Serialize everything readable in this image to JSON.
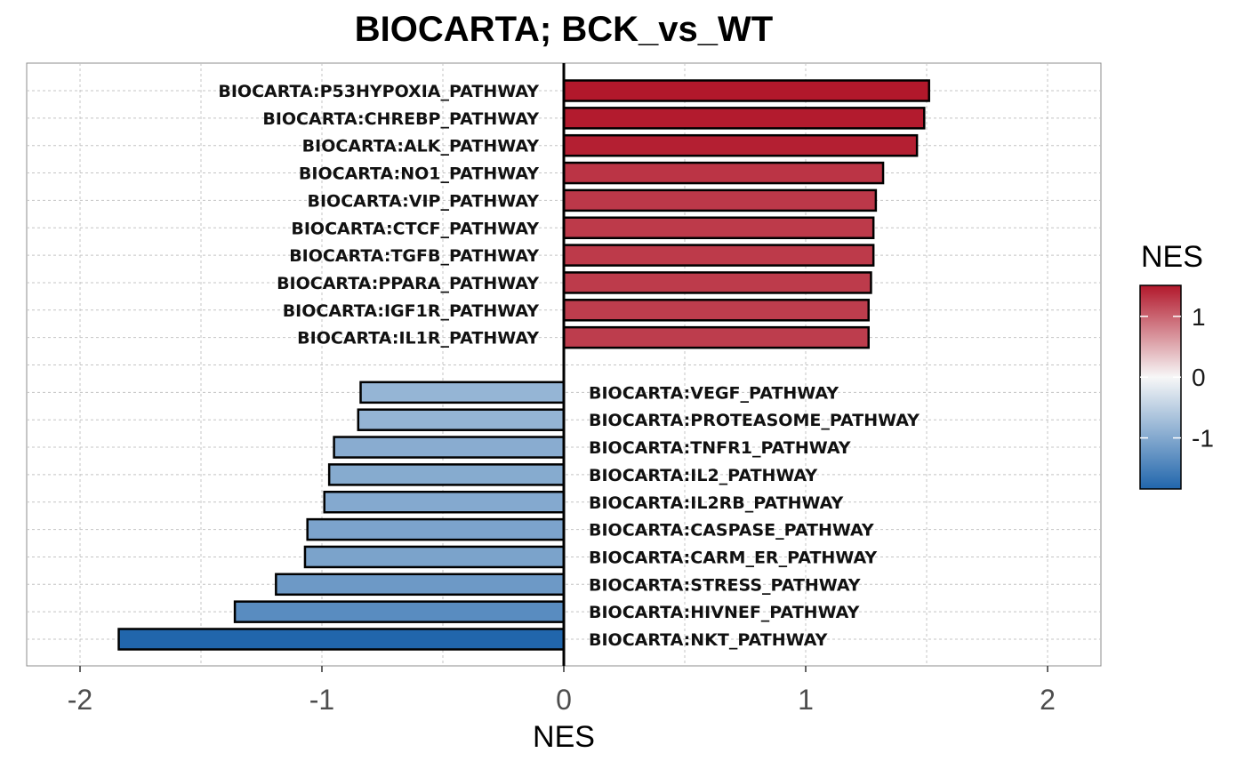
{
  "chart_data": {
    "type": "bar",
    "orientation": "horizontal",
    "title": "BIOCARTA; BCK_vs_WT",
    "xlabel": "NES",
    "ylabel": "",
    "xlim": [
      -2.2,
      2.2
    ],
    "xticks": [
      -2,
      -1,
      0,
      1,
      2
    ],
    "xtick_labels": [
      "-2",
      "-1",
      "0",
      "1",
      "2"
    ],
    "grid": true,
    "legend": {
      "title": "NES",
      "placement": "right",
      "ticks": [
        1,
        0,
        -1
      ],
      "tick_labels": [
        "1",
        "0",
        "-1"
      ],
      "range": [
        -1.84,
        1.51
      ],
      "colors": {
        "low": "#2166ac",
        "mid": "#f7f7f7",
        "high": "#b2182b"
      }
    },
    "up": [
      {
        "label": "BIOCARTA:P53HYPOXIA_PATHWAY",
        "value": 1.51
      },
      {
        "label": "BIOCARTA:CHREBP_PATHWAY",
        "value": 1.49
      },
      {
        "label": "BIOCARTA:ALK_PATHWAY",
        "value": 1.46
      },
      {
        "label": "BIOCARTA:NO1_PATHWAY",
        "value": 1.32
      },
      {
        "label": "BIOCARTA:VIP_PATHWAY",
        "value": 1.29
      },
      {
        "label": "BIOCARTA:CTCF_PATHWAY",
        "value": 1.28
      },
      {
        "label": "BIOCARTA:TGFB_PATHWAY",
        "value": 1.28
      },
      {
        "label": "BIOCARTA:PPARA_PATHWAY",
        "value": 1.27
      },
      {
        "label": "BIOCARTA:IGF1R_PATHWAY",
        "value": 1.26
      },
      {
        "label": "BIOCARTA:IL1R_PATHWAY",
        "value": 1.26
      }
    ],
    "down": [
      {
        "label": "BIOCARTA:VEGF_PATHWAY",
        "value": -0.84
      },
      {
        "label": "BIOCARTA:PROTEASOME_PATHWAY",
        "value": -0.85
      },
      {
        "label": "BIOCARTA:TNFR1_PATHWAY",
        "value": -0.95
      },
      {
        "label": "BIOCARTA:IL2_PATHWAY",
        "value": -0.97
      },
      {
        "label": "BIOCARTA:IL2RB_PATHWAY",
        "value": -0.99
      },
      {
        "label": "BIOCARTA:CASPASE_PATHWAY",
        "value": -1.06
      },
      {
        "label": "BIOCARTA:CARM_ER_PATHWAY",
        "value": -1.07
      },
      {
        "label": "BIOCARTA:STRESS_PATHWAY",
        "value": -1.19
      },
      {
        "label": "BIOCARTA:HIVNEF_PATHWAY",
        "value": -1.36
      },
      {
        "label": "BIOCARTA:NKT_PATHWAY",
        "value": -1.84
      }
    ]
  }
}
